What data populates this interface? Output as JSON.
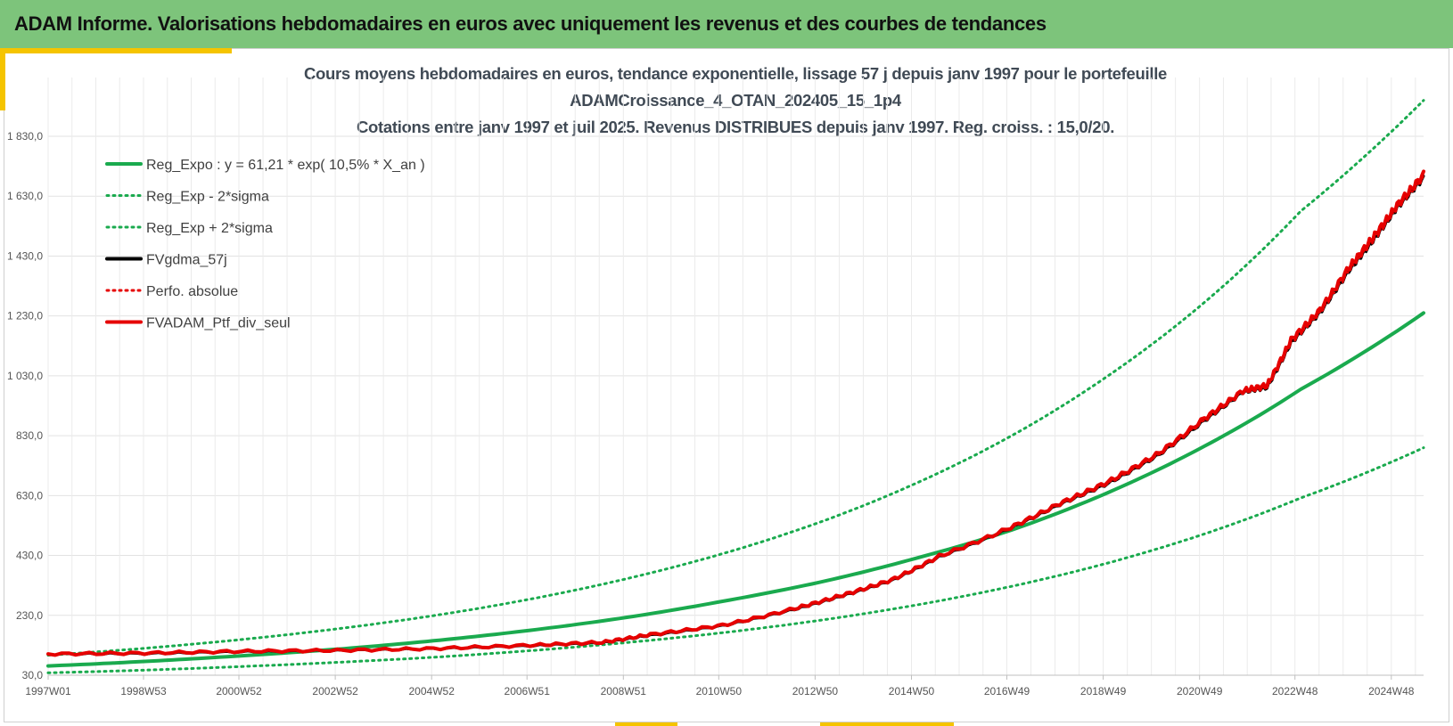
{
  "header": {
    "title": "ADAM Informe. Valorisations hebdomadaires en euros avec uniquement les revenus et des courbes de tendances"
  },
  "colors": {
    "header_bg": "#7dc47b",
    "accent": "#f5c400",
    "trend_green": "#1aaa4e",
    "price_black": "#000000",
    "perf_red": "#e60000"
  },
  "chart_data": {
    "type": "line",
    "title_lines": [
      "Cours moyens hebdomadaires  en euros, tendance exponentielle, lissage 57 j depuis janv 1997 pour le portefeuille",
      "ADAMCroissance_4_OTAN_202405_15_1p4",
      "Cotations  entre janv 1997 et juil 2025. Revenus DISTRIBUES depuis janv 1997. Reg. croiss. : 15,0/20."
    ],
    "xlabel": "",
    "ylabel": "",
    "x_range": [
      1997.0,
      2025.55
    ],
    "ylim": [
      30,
      1950
    ],
    "y_ticks": [
      "30,0",
      "230,0",
      "430,0",
      "630,0",
      "830,0",
      "1 030,0",
      "1 230,0",
      "1 430,0",
      "1 630,0",
      "1 830,0"
    ],
    "y_tick_values": [
      30,
      230,
      430,
      630,
      830,
      1030,
      1230,
      1430,
      1630,
      1830
    ],
    "x_ticks": [
      "1997W01",
      "1998W53",
      "2000W52",
      "2002W52",
      "2004W52",
      "2006W51",
      "2008W51",
      "2010W50",
      "2012W50",
      "2014W50",
      "2016W49",
      "2018W49",
      "2020W49",
      "2022W48",
      "2024W48"
    ],
    "x_tick_values": [
      1997.0,
      1998.98,
      2000.96,
      2002.96,
      2004.96,
      2006.94,
      2008.94,
      2010.92,
      2012.92,
      2014.92,
      2016.9,
      2018.9,
      2020.9,
      2022.88,
      2024.88
    ],
    "grid": true,
    "legend_position": "top-left",
    "legend": [
      {
        "label": "Reg_Expo : y = 61,21 * exp( 10,5% *  X_an )",
        "style": "solid",
        "color": "#1aaa4e"
      },
      {
        "label": "Reg_Exp - 2*sigma",
        "style": "dotted",
        "color": "#1aaa4e"
      },
      {
        "label": "Reg_Exp + 2*sigma",
        "style": "dotted",
        "color": "#1aaa4e"
      },
      {
        "label": "FVgdma_57j",
        "style": "solid",
        "color": "#000000"
      },
      {
        "label": "Perfo. absolue",
        "style": "dotted",
        "color": "#e60000"
      },
      {
        "label": "FVADAM_Ptf_div_seul",
        "style": "solid",
        "color": "#e60000"
      }
    ],
    "series": [
      {
        "name": "Reg_Expo : y = 61,21 * exp( 10,5% *  X_an )",
        "x": [
          1997,
          1999,
          2001,
          2003,
          2005,
          2007,
          2009,
          2011,
          2013,
          2015,
          2017,
          2019,
          2021,
          2023,
          2025.55
        ],
        "values": [
          61,
          76,
          95,
          117,
          145,
          180,
          223,
          277,
          340,
          420,
          515,
          640,
          795,
          985,
          1240
        ]
      },
      {
        "name": "Reg_Exp - 2*sigma",
        "x": [
          1997,
          1999,
          2001,
          2003,
          2005,
          2007,
          2009,
          2011,
          2013,
          2015,
          2017,
          2019,
          2021,
          2023,
          2025.55
        ],
        "values": [
          38,
          47,
          59,
          73,
          90,
          112,
          139,
          172,
          213,
          264,
          327,
          405,
          502,
          622,
          790
        ]
      },
      {
        "name": "Reg_Exp + 2*sigma",
        "x": [
          1997,
          1999,
          2001,
          2003,
          2005,
          2007,
          2009,
          2011,
          2013,
          2015,
          2017,
          2019,
          2021,
          2023,
          2025.55
        ],
        "values": [
          97,
          120,
          149,
          185,
          229,
          284,
          352,
          436,
          540,
          670,
          830,
          1030,
          1275,
          1580,
          1950
        ]
      },
      {
        "name": "FVgdma_57j",
        "x": [
          1997,
          1999,
          2001,
          2003,
          2005,
          2007,
          2008.5,
          2009.5,
          2011,
          2012.5,
          2013.5,
          2014.5,
          2015.5,
          2016.9,
          2018,
          2019,
          2020,
          2021,
          2021.8,
          2022.3,
          2022.8,
          2023.4,
          2024,
          2024.5,
          2025,
          2025.55
        ],
        "values": [
          100,
          102,
          108,
          112,
          118,
          128,
          138,
          163,
          195,
          250,
          295,
          345,
          425,
          515,
          600,
          670,
          760,
          880,
          975,
          990,
          1140,
          1240,
          1380,
          1480,
          1590,
          1690
        ]
      },
      {
        "name": "Perfo. absolue",
        "x": [
          1997,
          1999,
          2001,
          2003,
          2005,
          2007,
          2008.5,
          2009.5,
          2011,
          2012.5,
          2013.5,
          2014.5,
          2015.5,
          2016.9,
          2018,
          2019,
          2020,
          2021,
          2021.8,
          2022.3,
          2022.8,
          2023.4,
          2024,
          2024.5,
          2025,
          2025.55
        ],
        "values": [
          100,
          102,
          108,
          112,
          118,
          128,
          138,
          163,
          195,
          250,
          295,
          345,
          425,
          515,
          600,
          670,
          760,
          880,
          975,
          990,
          1140,
          1240,
          1380,
          1480,
          1590,
          1690
        ]
      },
      {
        "name": "FVADAM_Ptf_div_seul",
        "x": [
          1997,
          1999,
          2001,
          2003,
          2005,
          2007,
          2008.5,
          2009.5,
          2011,
          2012.5,
          2013.5,
          2014.5,
          2015.5,
          2016.9,
          2018,
          2019,
          2020,
          2021,
          2021.8,
          2022.3,
          2022.8,
          2023.4,
          2024,
          2024.5,
          2025,
          2025.55
        ],
        "values": [
          101,
          104,
          110,
          113,
          119,
          130,
          140,
          166,
          197,
          253,
          298,
          348,
          428,
          518,
          604,
          676,
          766,
          888,
          980,
          998,
          1150,
          1250,
          1392,
          1492,
          1600,
          1702
        ]
      }
    ]
  }
}
